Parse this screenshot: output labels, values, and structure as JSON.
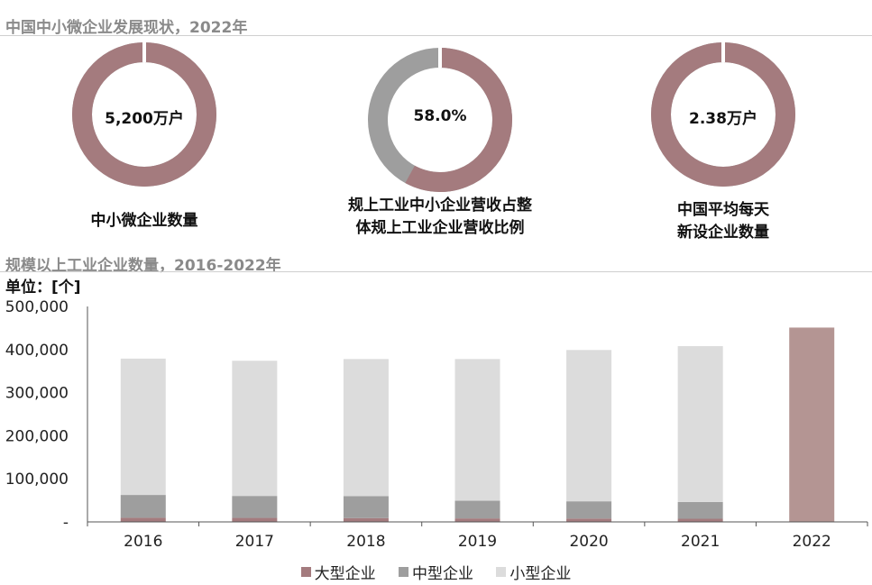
{
  "header": {
    "title1": "中国中小微企业发展现状，2022年",
    "title2": "规模以上工业企业数量，2016-2022年",
    "unit": "单位：[个]"
  },
  "donuts": [
    {
      "value_label": "5,200万户",
      "fraction": 1.0,
      "caption_lines": [
        "中小微企业数量"
      ]
    },
    {
      "value_label": "58.0%",
      "fraction": 0.58,
      "caption_lines": [
        "规上工业中小企业营收占整",
        "体规上工业企业营收比例"
      ]
    },
    {
      "value_label": "2.38万户",
      "fraction": 1.0,
      "caption_lines": [
        "中国平均每天",
        "新设企业数量"
      ]
    }
  ],
  "colors": {
    "large": "#a47b7e",
    "medium": "#9e9e9e",
    "small": "#dcdcdc",
    "total_2022": "#b49593"
  },
  "chart_data": {
    "type": "bar",
    "stacked": true,
    "categories": [
      "2016",
      "2017",
      "2018",
      "2019",
      "2020",
      "2021",
      "2022"
    ],
    "series": [
      {
        "name": "大型企业",
        "values": [
          9600,
          9300,
          8900,
          8100,
          7800,
          7300,
          null
        ]
      },
      {
        "name": "中型企业",
        "values": [
          53000,
          51000,
          51000,
          41000,
          40000,
          39000,
          null
        ]
      },
      {
        "name": "小型企业",
        "values": [
          316400,
          313700,
          318100,
          328900,
          351200,
          361700,
          null
        ]
      },
      {
        "name": "",
        "values": [
          null,
          null,
          null,
          null,
          null,
          null,
          451000
        ]
      }
    ],
    "ylim": [
      0,
      500000
    ],
    "yticks": [
      "-",
      "100,000",
      "200,000",
      "300,000",
      "400,000",
      "500,000"
    ],
    "legend": [
      "大型企业",
      "中型企业",
      "小型企业"
    ],
    "legend_position": "bottom"
  }
}
